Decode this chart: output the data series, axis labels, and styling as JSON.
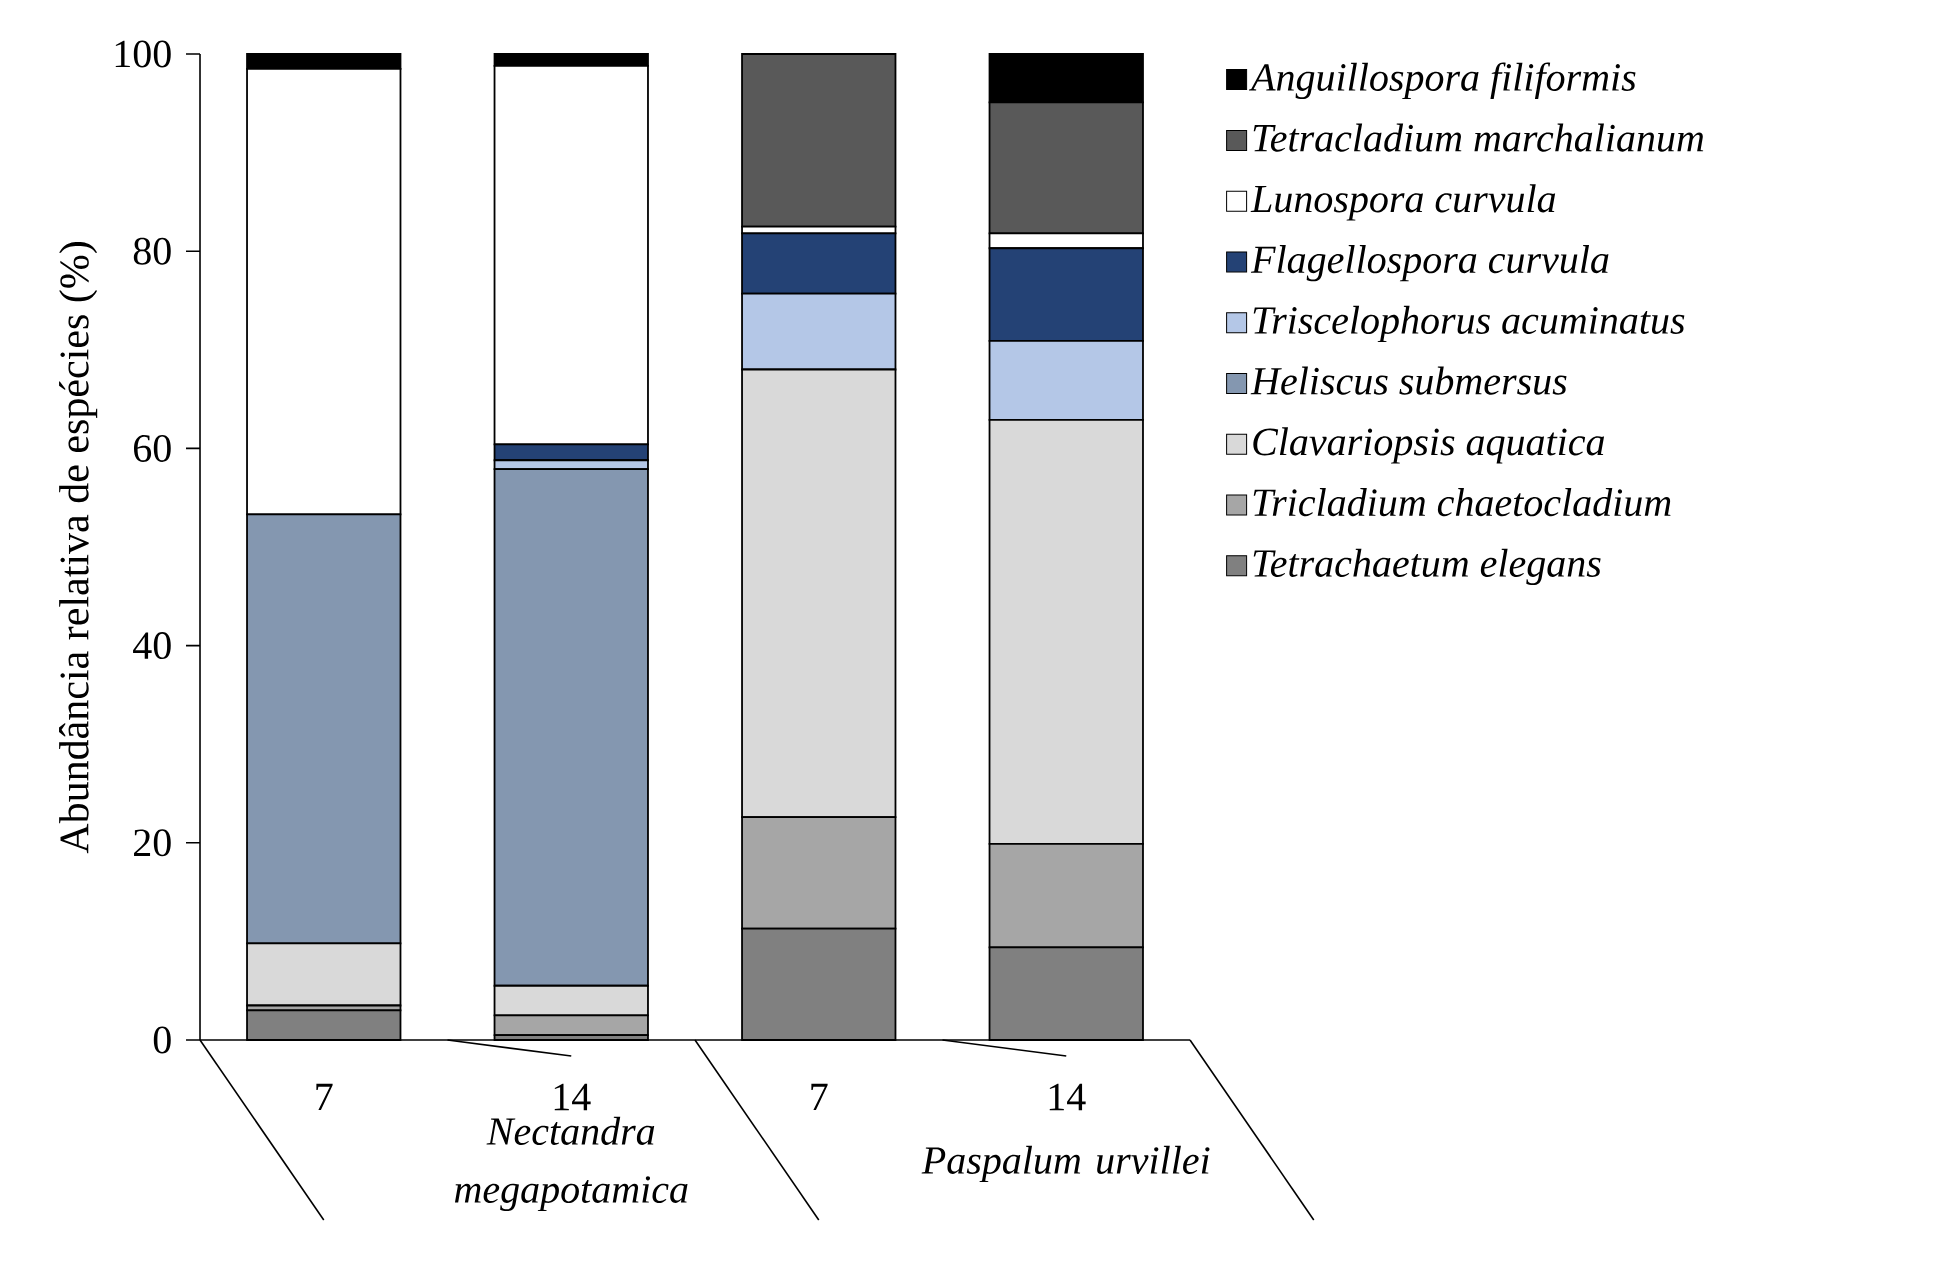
{
  "chart_data": {
    "type": "bar",
    "stacked": true,
    "ylabel": "Abundância relativa de espécies (%)",
    "categories": [
      "7",
      "14",
      "7",
      "14"
    ],
    "annotations": [
      "Nectandra megapotamica",
      "Paspalum urvillei"
    ],
    "ylim": [
      0,
      100
    ],
    "yticks": [
      0,
      20,
      40,
      60,
      80,
      100
    ],
    "grid": false,
    "legend": "right",
    "series": [
      {
        "name": "Tetrachaetum elegans",
        "color": "#808080",
        "values": [
          3.0,
          0.5,
          11.3,
          9.4
        ]
      },
      {
        "name": "Tricladium chaetocladium",
        "color": "#a6a6a6",
        "values": [
          0.5,
          2.0,
          11.3,
          10.5
        ]
      },
      {
        "name": "Clavariopsis aquatica",
        "color": "#d9d9d9",
        "values": [
          6.3,
          3.0,
          45.4,
          43.0
        ]
      },
      {
        "name": "Heliscus submersus",
        "color": "#8497b0",
        "values": [
          43.5,
          52.4,
          0,
          0
        ]
      },
      {
        "name": "Triscelophorus acuminatus",
        "color": "#b4c7e7",
        "values": [
          0,
          0.9,
          7.7,
          8.0
        ]
      },
      {
        "name": "Flagellospora curvula",
        "color": "#244275",
        "values": [
          0,
          1.6,
          6.1,
          9.4
        ]
      },
      {
        "name": "Lunospora curvula",
        "color": "#ffffff",
        "values": [
          45.2,
          38.4,
          0.7,
          1.5
        ]
      },
      {
        "name": "Tetracladium marchalianum",
        "color": "#595959",
        "values": [
          0,
          0,
          17.5,
          13.3
        ]
      },
      {
        "name": "Anguillospora filiformis",
        "color": "#000000",
        "values": [
          1.5,
          1.2,
          0,
          4.9
        ]
      }
    ]
  }
}
